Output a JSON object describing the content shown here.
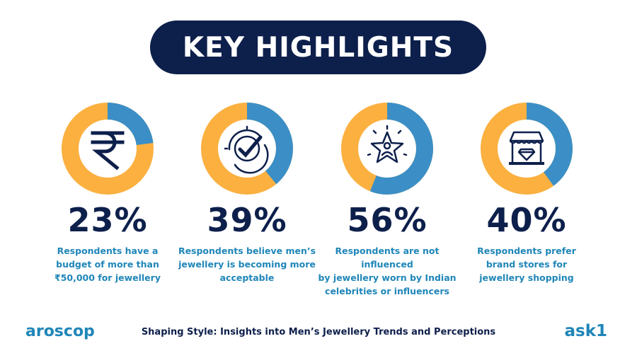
{
  "banner": {
    "title": "KEY HIGHLIGHTS"
  },
  "colors": {
    "navy": "#0d1f4b",
    "blue": "#3b8fc6",
    "orange": "#fbb040",
    "text_blue": "#1f86b8"
  },
  "cards": [
    {
      "value": 23,
      "value_label": "23%",
      "icon": "rupee-icon",
      "lines": [
        "Respondents have a",
        "budget of more than",
        "₹50,000 for jewellery"
      ]
    },
    {
      "value": 39,
      "value_label": "39%",
      "icon": "checkmark-badge-icon",
      "lines": [
        "Respondents believe men’s",
        "jewellery is becoming more",
        "acceptable"
      ]
    },
    {
      "value": 56,
      "value_label": "56%",
      "icon": "star-person-icon",
      "lines": [
        "Respondents are not influenced",
        "by jewellery worn by Indian",
        "celebrities or influencers"
      ]
    },
    {
      "value": 40,
      "value_label": "40%",
      "icon": "diamond-store-icon",
      "lines": [
        "Respondents prefer",
        "brand stores for",
        "jewellery shopping"
      ]
    }
  ],
  "footer": {
    "title": "Shaping Style: Insights into Men’s Jewellery Trends and Perceptions",
    "logo_left": "aroscop",
    "logo_right": "ask1"
  }
}
